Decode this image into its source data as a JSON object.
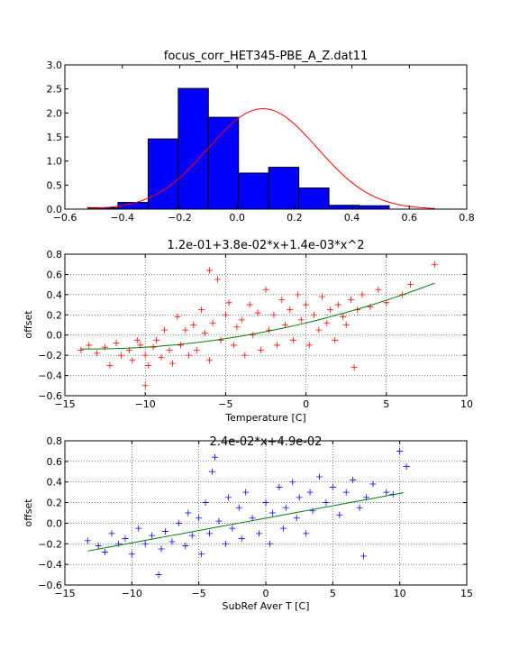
{
  "chart_data": [
    {
      "type": "bar",
      "title": "focus_corr_HET345-PBE_A_Z.dat11",
      "xlabel": "",
      "ylabel": "",
      "xlim": [
        -0.6,
        0.8
      ],
      "ylim": [
        0.0,
        3.0
      ],
      "xticks": [
        "−0.6",
        "−0.4",
        "−0.2",
        "0.0",
        "0.2",
        "0.4",
        "0.6",
        "0.8"
      ],
      "yticks": [
        "0.0",
        "0.5",
        "1.0",
        "1.5",
        "2.0",
        "2.5",
        "3.0"
      ],
      "grid": false,
      "bar_color": "#0000ff",
      "curve_color": "#ff0000",
      "bins": [
        {
          "x0": -0.52,
          "x1": -0.415,
          "value": 0.03
        },
        {
          "x0": -0.415,
          "x1": -0.31,
          "value": 0.14
        },
        {
          "x0": -0.31,
          "x1": -0.205,
          "value": 1.46
        },
        {
          "x0": -0.205,
          "x1": -0.1,
          "value": 2.51
        },
        {
          "x0": -0.1,
          "x1": 0.005,
          "value": 1.91
        },
        {
          "x0": 0.005,
          "x1": 0.11,
          "value": 0.75
        },
        {
          "x0": 0.11,
          "x1": 0.215,
          "value": 0.87
        },
        {
          "x0": 0.215,
          "x1": 0.32,
          "value": 0.44
        },
        {
          "x0": 0.32,
          "x1": 0.425,
          "value": 0.08
        },
        {
          "x0": 0.425,
          "x1": 0.53,
          "value": 0.07
        }
      ],
      "fit_curve": {
        "type": "gaussian",
        "mean": 0.09,
        "sigma": 0.19,
        "peak": 2.09,
        "x_range": [
          -0.52,
          0.69
        ]
      }
    },
    {
      "type": "scatter",
      "title": "1.2e-01+3.8e-02*x+1.4e-03*x^2",
      "xlabel": "Temperature [C]",
      "ylabel": "offset",
      "xlim": [
        -15,
        10
      ],
      "ylim": [
        -0.6,
        0.8
      ],
      "xticks": [
        "−15",
        "−10",
        "−5",
        "0",
        "5",
        "10"
      ],
      "yticks": [
        "−0.6",
        "−0.4",
        "−0.2",
        "0.0",
        "0.2",
        "0.4",
        "0.6",
        "0.8"
      ],
      "grid": true,
      "marker": "+",
      "marker_color": "#ff0000",
      "fit_color": "#008000",
      "fit": {
        "type": "polynomial",
        "coefficients": [
          0.12,
          0.038,
          0.0014
        ],
        "x_range": [
          -14,
          8
        ]
      },
      "points": [
        [
          -14.0,
          -0.15
        ],
        [
          -13.5,
          -0.1
        ],
        [
          -13.0,
          -0.18
        ],
        [
          -12.5,
          -0.12
        ],
        [
          -12.2,
          -0.3
        ],
        [
          -11.8,
          -0.08
        ],
        [
          -11.5,
          -0.2
        ],
        [
          -11.0,
          -0.15
        ],
        [
          -10.8,
          -0.25
        ],
        [
          -10.5,
          -0.05
        ],
        [
          -10.3,
          -0.1
        ],
        [
          -10.0,
          -0.5
        ],
        [
          -10.0,
          -0.2
        ],
        [
          -9.8,
          -0.3
        ],
        [
          -9.5,
          -0.12
        ],
        [
          -9.3,
          -0.05
        ],
        [
          -9.0,
          -0.22
        ],
        [
          -8.8,
          0.05
        ],
        [
          -8.5,
          -0.15
        ],
        [
          -8.3,
          -0.28
        ],
        [
          -8.0,
          0.18
        ],
        [
          -7.8,
          -0.1
        ],
        [
          -7.5,
          0.05
        ],
        [
          -7.3,
          -0.2
        ],
        [
          -7.0,
          0.1
        ],
        [
          -6.8,
          -0.15
        ],
        [
          -6.5,
          0.25
        ],
        [
          -6.3,
          0.02
        ],
        [
          -6.0,
          0.64
        ],
        [
          -6.0,
          -0.25
        ],
        [
          -5.8,
          0.12
        ],
        [
          -5.5,
          0.55
        ],
        [
          -5.3,
          -0.05
        ],
        [
          -5.0,
          0.2
        ],
        [
          -4.8,
          0.32
        ],
        [
          -4.5,
          -0.1
        ],
        [
          -4.3,
          0.08
        ],
        [
          -4.0,
          0.15
        ],
        [
          -3.8,
          -0.2
        ],
        [
          -3.5,
          0.3
        ],
        [
          -3.3,
          0.0
        ],
        [
          -3.0,
          0.22
        ],
        [
          -2.8,
          -0.15
        ],
        [
          -2.5,
          0.45
        ],
        [
          -2.3,
          0.05
        ],
        [
          -2.0,
          0.2
        ],
        [
          -1.8,
          -0.1
        ],
        [
          -1.5,
          0.35
        ],
        [
          -1.3,
          0.1
        ],
        [
          -1.0,
          0.25
        ],
        [
          -0.8,
          -0.05
        ],
        [
          -0.5,
          0.4
        ],
        [
          -0.3,
          0.15
        ],
        [
          0.0,
          0.3
        ],
        [
          0.2,
          -0.1
        ],
        [
          0.5,
          0.2
        ],
        [
          0.8,
          0.05
        ],
        [
          1.0,
          0.38
        ],
        [
          1.3,
          0.12
        ],
        [
          1.5,
          0.25
        ],
        [
          1.8,
          -0.05
        ],
        [
          2.0,
          0.3
        ],
        [
          2.3,
          0.18
        ],
        [
          2.5,
          0.1
        ],
        [
          2.8,
          0.35
        ],
        [
          3.0,
          -0.32
        ],
        [
          3.2,
          0.25
        ],
        [
          3.5,
          0.4
        ],
        [
          4.0,
          0.28
        ],
        [
          4.5,
          0.45
        ],
        [
          5.0,
          0.32
        ],
        [
          6.0,
          0.4
        ],
        [
          6.5,
          0.5
        ],
        [
          8.0,
          0.7
        ]
      ]
    },
    {
      "type": "scatter",
      "title": "2.4e-02*x+4.9e-02",
      "xlabel": "SubRef Aver T [C]",
      "ylabel": "offset",
      "xlim": [
        -15,
        15
      ],
      "ylim": [
        -0.6,
        0.8
      ],
      "xticks": [
        "−15",
        "−10",
        "−5",
        "0",
        "5",
        "10",
        "15"
      ],
      "yticks": [
        "−0.6",
        "−0.4",
        "−0.2",
        "0.0",
        "0.2",
        "0.4",
        "0.6",
        "0.8"
      ],
      "grid": true,
      "marker": "+",
      "marker_color": "#0000ff",
      "fit_color": "#008000",
      "fit": {
        "type": "linear",
        "slope": 0.024,
        "intercept": 0.049,
        "x_range": [
          -13.3,
          10.3
        ]
      },
      "points": [
        [
          -13.3,
          -0.17
        ],
        [
          -12.5,
          -0.22
        ],
        [
          -12.0,
          -0.28
        ],
        [
          -11.5,
          -0.1
        ],
        [
          -11.0,
          -0.2
        ],
        [
          -10.5,
          -0.15
        ],
        [
          -10.0,
          -0.3
        ],
        [
          -9.5,
          -0.05
        ],
        [
          -9.0,
          -0.2
        ],
        [
          -8.5,
          -0.12
        ],
        [
          -8.0,
          -0.5
        ],
        [
          -7.8,
          -0.25
        ],
        [
          -7.5,
          -0.08
        ],
        [
          -7.0,
          -0.18
        ],
        [
          -6.5,
          0.0
        ],
        [
          -6.0,
          -0.22
        ],
        [
          -5.8,
          0.1
        ],
        [
          -5.5,
          -0.12
        ],
        [
          -5.0,
          0.05
        ],
        [
          -4.8,
          -0.3
        ],
        [
          -4.5,
          0.2
        ],
        [
          -4.2,
          -0.1
        ],
        [
          -4.0,
          0.5
        ],
        [
          -3.8,
          0.64
        ],
        [
          -3.5,
          0.02
        ],
        [
          -3.0,
          -0.2
        ],
        [
          -2.8,
          0.25
        ],
        [
          -2.5,
          -0.05
        ],
        [
          -2.0,
          0.15
        ],
        [
          -1.8,
          -0.15
        ],
        [
          -1.5,
          0.3
        ],
        [
          -1.0,
          0.05
        ],
        [
          -0.5,
          -0.1
        ],
        [
          0.0,
          0.2
        ],
        [
          0.3,
          -0.2
        ],
        [
          0.5,
          0.1
        ],
        [
          1.0,
          0.35
        ],
        [
          1.3,
          -0.05
        ],
        [
          1.5,
          0.15
        ],
        [
          2.0,
          0.4
        ],
        [
          2.3,
          0.05
        ],
        [
          2.5,
          0.25
        ],
        [
          3.0,
          -0.1
        ],
        [
          3.3,
          0.3
        ],
        [
          3.5,
          0.12
        ],
        [
          4.0,
          0.45
        ],
        [
          4.5,
          0.2
        ],
        [
          5.0,
          0.35
        ],
        [
          5.5,
          0.08
        ],
        [
          6.0,
          0.3
        ],
        [
          6.5,
          0.42
        ],
        [
          7.0,
          0.15
        ],
        [
          7.3,
          -0.32
        ],
        [
          7.5,
          0.25
        ],
        [
          8.0,
          0.38
        ],
        [
          9.0,
          0.3
        ],
        [
          9.5,
          0.28
        ],
        [
          10.0,
          0.7
        ],
        [
          10.5,
          0.55
        ]
      ]
    }
  ]
}
